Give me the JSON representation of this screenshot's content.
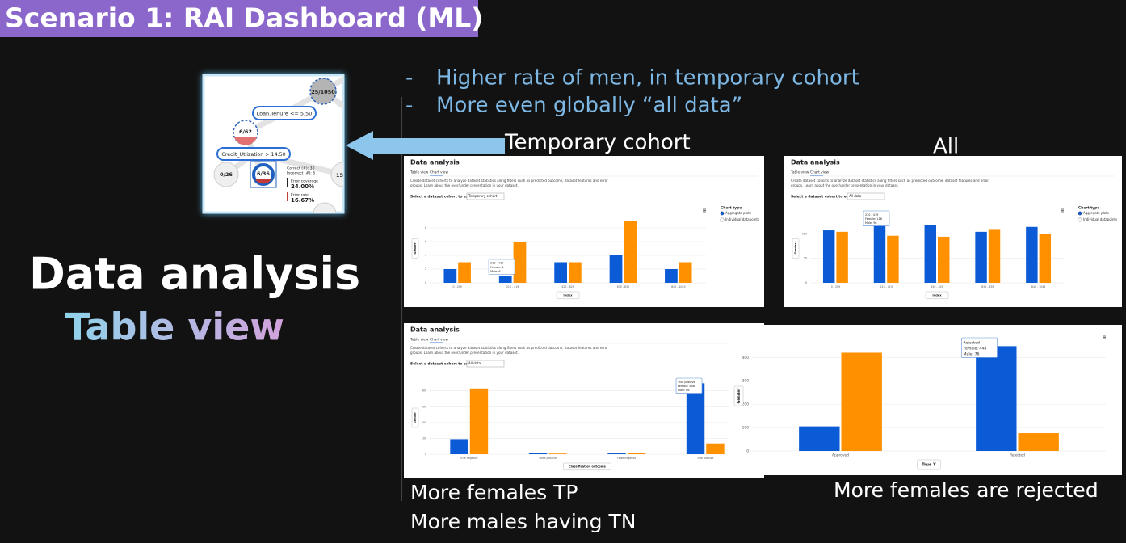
{
  "header": {
    "title": "Scenario 1: RAI Dashboard (ML)"
  },
  "bullets": [
    {
      "marker": "-",
      "text": "Higher rate of men, in temporary cohort"
    },
    {
      "marker": "-",
      "text": "More even globally “all data”"
    }
  ],
  "tree_snapshot": {
    "root": "25/1050",
    "split_1": "Loan.Tenure <= 5.50",
    "node_1": "6/62",
    "split_2": "Credit_Utlization > 14.50",
    "leaf_1": "0/26",
    "leaf_2": "6/36",
    "leaf_3": "15",
    "stats": [
      "Correct (#): 30",
      "Incorrect (#): 6",
      "Error coverage",
      "24.00%",
      "Error rate",
      "16.67%"
    ]
  },
  "section": {
    "title": "Data analysis",
    "subtitle": "Table view"
  },
  "captions": {
    "temporary": "Temporary cohort",
    "all": "All",
    "bottom_left": [
      "More females TP",
      "More males having TN"
    ],
    "bottom_right": "More females are rejected"
  },
  "panels": [
    {
      "title": "Data analysis",
      "tabs": [
        "Table view",
        "Chart view"
      ],
      "description": [
        "Create dataset cohorts to analyze dataset statistics along filters such as predicted outcome, dataset features and error",
        "groups. Learn about the over/under presentation in your dataset."
      ],
      "cohort_label": "Select a dataset cohort to explore",
      "cohort": "Temporary cohort",
      "chart_type_label": "Chart type",
      "chart_type_options": [
        "Aggregate plots",
        "Individual datapoints"
      ],
      "chart": {
        "type": "bar",
        "categories": [
          "0 - 209",
          "210 - 419",
          "420 - 629",
          "630 - 839",
          "840 - 1049"
        ],
        "series": [
          {
            "color": "#0b5ad6",
            "values": [
              2,
              1,
              3,
              4,
              2
            ]
          },
          {
            "color": "#ff9100",
            "values": [
              3,
              6,
              3,
              9,
              3
            ]
          }
        ],
        "ylim": [
          0,
          10
        ],
        "yticks": [
          0,
          2,
          4,
          6,
          8
        ],
        "y_label": "Gender",
        "x_label": "Index",
        "tooltip": [
          "210 - 419",
          "Female: 1",
          "Male: 6"
        ]
      }
    },
    {
      "title": "Data analysis",
      "tabs": [
        "Table view",
        "Chart view"
      ],
      "description": [
        "Create dataset cohorts to analyze dataset statistics along filters such as predicted outcome, dataset features and error",
        "groups. Learn about the over/under presentation in your dataset."
      ],
      "cohort_label": "Select a dataset cohort to explore",
      "cohort": "All data",
      "chart_type_label": "Chart type",
      "chart_type_options": [
        "Aggregate plots",
        "Individual datapoints"
      ],
      "chart": {
        "type": "bar",
        "categories": [
          "0 - 209",
          "210 - 419",
          "420 - 629",
          "630 - 839",
          "840 - 1049"
        ],
        "series": [
          {
            "color": "#0b5ad6",
            "values": [
              107,
              118,
              118,
              104,
              114
            ]
          },
          {
            "color": "#ff9100",
            "values": [
              104,
              96,
              94,
              108,
              99
            ]
          }
        ],
        "ylim": [
          0,
          140
        ],
        "yticks": [
          0,
          50,
          100
        ],
        "y_label": "Gender",
        "x_label": "Index",
        "tooltip": [
          "210 - 419",
          "Female: 118",
          "Male: 96"
        ]
      }
    },
    {
      "title": "Data analysis",
      "tabs": [
        "Table view",
        "Chart view"
      ],
      "description": [
        "Create dataset cohorts to analyze dataset statistics along filters such as predicted outcome, dataset features and error",
        "groups. Learn about the over/under presentation in your dataset."
      ],
      "cohort_label": "Select a dataset cohort to explore",
      "cohort": "All data",
      "chart": {
        "type": "bar",
        "categories": [
          "True negative",
          "False positive",
          "False negative",
          "True positive"
        ],
        "series": [
          {
            "color": "#0b5ad6",
            "values": [
              95,
              8,
              5,
              448
            ]
          },
          {
            "color": "#ff9100",
            "values": [
              415,
              4,
              6,
              68
            ]
          }
        ],
        "ylim": [
          0,
          460
        ],
        "yticks": [
          0,
          100,
          200,
          300,
          400
        ],
        "y_label": "Gender",
        "x_label": "Classification outcome",
        "tooltip": [
          "True positive",
          "Female: 448",
          "Male: 68"
        ]
      }
    },
    {
      "chart": {
        "type": "bar",
        "categories": [
          "Approved",
          "Rejected"
        ],
        "series": [
          {
            "color": "#0b5ad6",
            "values": [
              105,
              448
            ]
          },
          {
            "color": "#ff9100",
            "values": [
              420,
              76
            ]
          }
        ],
        "ylim": [
          0,
          470
        ],
        "yticks": [
          0,
          100,
          200,
          300,
          400
        ],
        "y_label": "Gender",
        "x_label": "True Y",
        "tooltip": [
          "Rejected",
          "Female: 448",
          "Male: 76"
        ]
      }
    }
  ]
}
